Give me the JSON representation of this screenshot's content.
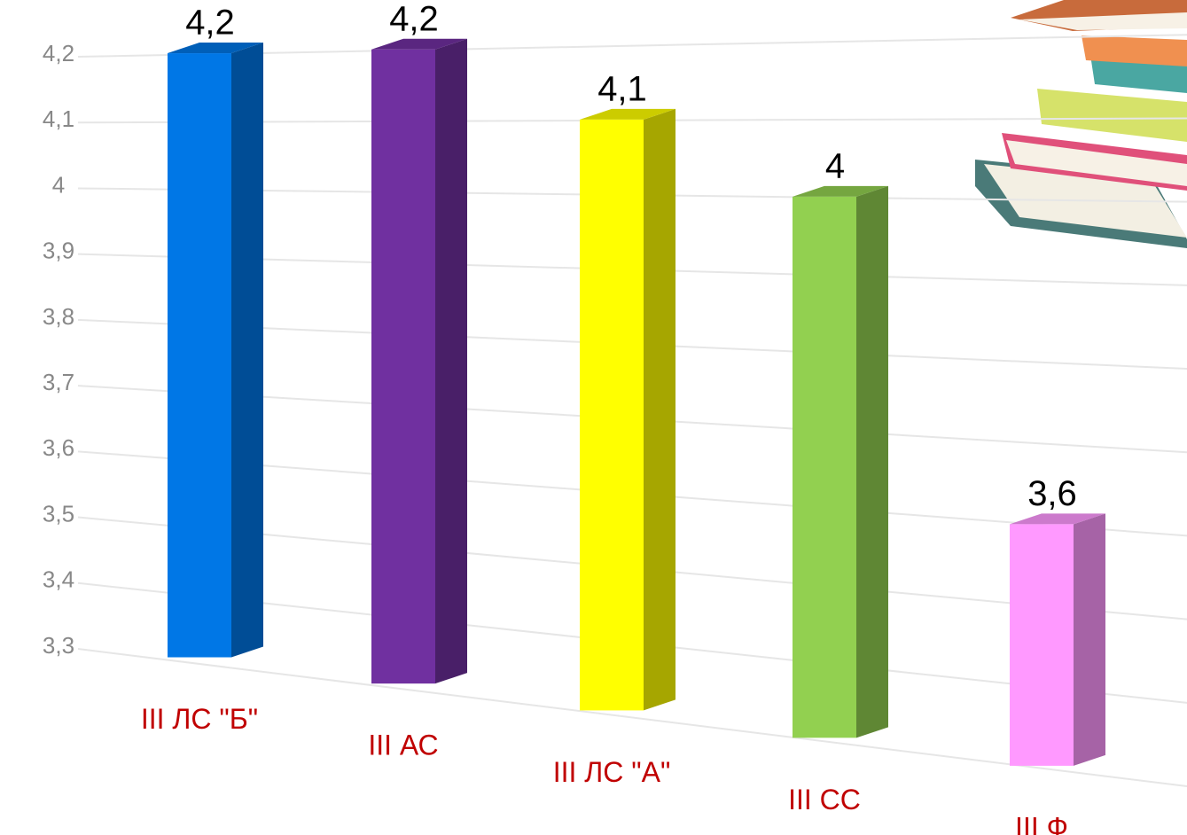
{
  "chart_data": {
    "type": "bar3d",
    "categories": [
      "III ЛС \"Б\"",
      "III АС",
      "III ЛС \"А\"",
      "III СС",
      "III Ф"
    ],
    "values": [
      4.2,
      4.2,
      4.1,
      4,
      3.6
    ],
    "value_labels": [
      "4,2",
      "4,2",
      "4,1",
      "4",
      "3,6"
    ],
    "colors": [
      "#0077e6",
      "#7030a0",
      "#ffff00",
      "#92d050",
      "#ff99ff"
    ],
    "ylim": [
      3.3,
      4.2
    ],
    "yticks": [
      {
        "value": 3.3,
        "label": "3,3"
      },
      {
        "value": 3.4,
        "label": "3,4"
      },
      {
        "value": 3.5,
        "label": "3,5"
      },
      {
        "value": 3.6,
        "label": "3,6"
      },
      {
        "value": 3.7,
        "label": "3,7"
      },
      {
        "value": 3.8,
        "label": "3,8"
      },
      {
        "value": 3.9,
        "label": "3,9"
      },
      4,
      {
        "value": 4.1,
        "label": "4,1"
      },
      {
        "value": 4.2,
        "label": "4,2"
      }
    ],
    "grid": true
  }
}
